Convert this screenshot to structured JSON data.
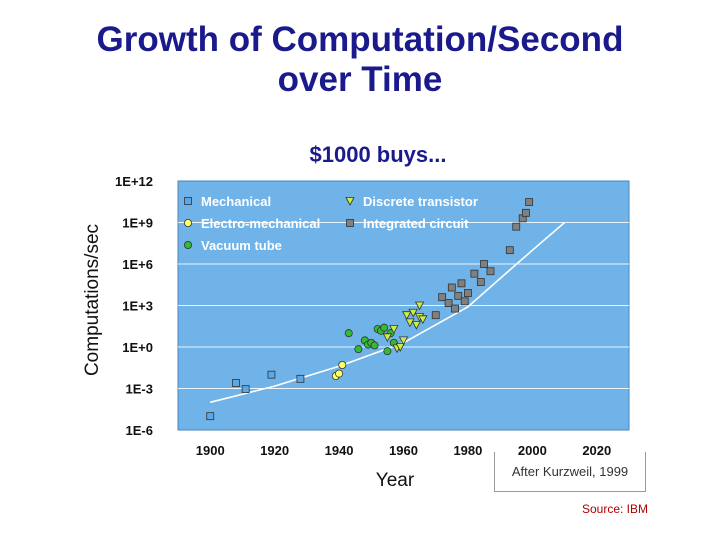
{
  "slide": {
    "title_line1": "Growth of Computation/Second",
    "title_line2": "over Time",
    "credit": "After Kurzweil, 1999",
    "source": "Source: IBM"
  },
  "colors": {
    "title": "#1a1a8c",
    "subtitle": "#1a1a8c",
    "plot_background": "#6fb3e8",
    "mechanical": "#5aa8e8",
    "electro_mechanical": "#ffff66",
    "vacuum_tube": "#33bb33",
    "discrete_transistor": "#ccee44",
    "integrated_circuit": "#808080",
    "trend_line": "#ffffff"
  },
  "chart_data": {
    "type": "scatter",
    "title": "$1000 buys...",
    "xlabel": "Year",
    "ylabel": "Computations/sec",
    "y_scale": "log10",
    "xlim": [
      1890,
      2030
    ],
    "ylim": [
      1e-06,
      1000000000000.0
    ],
    "x_ticks": [
      "1900",
      "1920",
      "1940",
      "1960",
      "1980",
      "2000",
      "2020"
    ],
    "x_tick_values": [
      1900,
      1920,
      1940,
      1960,
      1980,
      2000,
      2020
    ],
    "y_ticks": [
      "1E+12",
      "1E+9",
      "1E+6",
      "1E+3",
      "1E+0",
      "1E-3",
      "1E-6"
    ],
    "y_tick_values": [
      1000000000000.0,
      1000000000.0,
      1000000.0,
      1000.0,
      1,
      0.001,
      1e-06
    ],
    "grid": true,
    "legend_position": "top-left",
    "series": [
      {
        "name": "Mechanical",
        "marker": "square",
        "color": "#5aa8e8",
        "x": [
          1900,
          1908,
          1911,
          1919,
          1928
        ],
        "y": [
          1e-05,
          0.0025,
          0.0009,
          0.01,
          0.005
        ]
      },
      {
        "name": "Electro-mechanical",
        "marker": "circle",
        "color": "#ffff66",
        "x": [
          1939,
          1940,
          1941
        ],
        "y": [
          0.008,
          0.012,
          0.05
        ]
      },
      {
        "name": "Vacuum tube",
        "marker": "circle",
        "color": "#33bb33",
        "x": [
          1943,
          1946,
          1948,
          1949,
          1950,
          1951,
          1952,
          1953,
          1954,
          1955,
          1956,
          1957
        ],
        "y": [
          10,
          0.7,
          3,
          1.5,
          2,
          1.3,
          20,
          15,
          25,
          0.5,
          10,
          2
        ]
      },
      {
        "name": "Discrete transistor",
        "marker": "triangle-down",
        "color": "#ccee44",
        "x": [
          1955,
          1957,
          1958,
          1959,
          1960,
          1961,
          1962,
          1963,
          1964,
          1965,
          1965,
          1966
        ],
        "y": [
          5,
          20,
          0.8,
          1,
          3,
          200,
          60,
          300,
          40,
          150,
          1000,
          100
        ]
      },
      {
        "name": "Integrated circuit",
        "marker": "square",
        "color": "#808080",
        "x": [
          1970,
          1972,
          1974,
          1975,
          1976,
          1977,
          1978,
          1979,
          1980,
          1982,
          1984,
          1985,
          1987,
          1993,
          1995,
          1997,
          1998,
          1999
        ],
        "y": [
          200,
          4000,
          1500,
          20000,
          600,
          5000,
          40000,
          2000,
          8000,
          200000,
          50000,
          1000000,
          300000,
          10000000,
          500000000,
          2000000000,
          5000000000,
          30000000000
        ]
      },
      {
        "name": "",
        "marker": "line",
        "color": "#ffffff",
        "x": [
          1900,
          1920,
          1940,
          1960,
          1980,
          2000,
          2010
        ],
        "y": [
          0.0001,
          0.0015,
          0.04,
          2,
          800,
          10000000.0,
          1000000000.0
        ]
      }
    ]
  }
}
